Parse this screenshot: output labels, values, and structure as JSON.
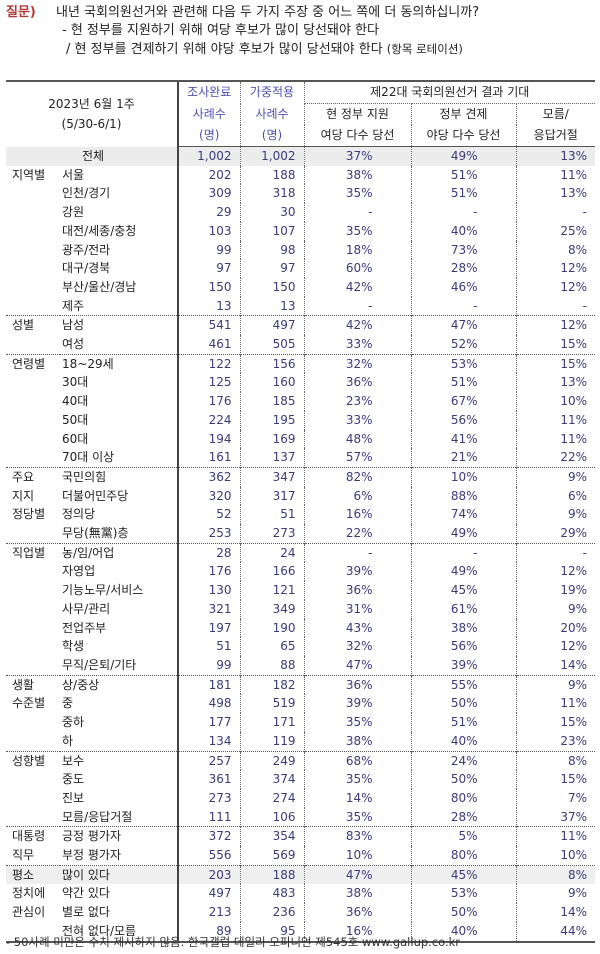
{
  "question": {
    "tag": "질문)",
    "line1": "내년 국회의원선거와 관련해 다음 두 가지 주장 중 어느 쪽에 더 동의하십니까?",
    "line2": "- 현 정부를 지원하기 위해 여당 후보가 많이 당선돼야 한다",
    "line3": "/ 현 정부를 견제하기 위해 야당 후보가 많이 당선돼야 한다",
    "line3_note": "(항목 로테이션)"
  },
  "header": {
    "date1": "2023년 6월 1주",
    "date2": "(5/30-6/1)",
    "col1_top": "조사완료",
    "col1_mid": "사례수",
    "col1_bot": "(명)",
    "col2_top": "가중적용",
    "col2_mid": "사례수",
    "col2_bot": "(명)",
    "group": "제22대 국회의원선거 결과 기대",
    "c3_a": "현 정부 지원",
    "c3_b": "여당 다수 당선",
    "c4_a": "정부 견제",
    "c4_b": "야당 다수 당선",
    "c5_a": "모름/",
    "c5_b": "응답거절"
  },
  "total": {
    "label": "전체",
    "n": "1,002",
    "w": "1,002",
    "a": "37%",
    "b": "49%",
    "c": "13%"
  },
  "groups": [
    {
      "label": [
        "지역별"
      ],
      "rows": [
        {
          "label": "서울",
          "n": "202",
          "w": "188",
          "a": "38%",
          "b": "51%",
          "c": "11%"
        },
        {
          "label": "인천/경기",
          "n": "309",
          "w": "318",
          "a": "35%",
          "b": "51%",
          "c": "13%"
        },
        {
          "label": "강원",
          "n": "29",
          "w": "30",
          "a": "-",
          "b": "-",
          "c": "-"
        },
        {
          "label": "대전/세종/충청",
          "n": "103",
          "w": "107",
          "a": "35%",
          "b": "40%",
          "c": "25%"
        },
        {
          "label": "광주/전라",
          "n": "99",
          "w": "98",
          "a": "18%",
          "b": "73%",
          "c": "8%"
        },
        {
          "label": "대구/경북",
          "n": "97",
          "w": "97",
          "a": "60%",
          "b": "28%",
          "c": "12%"
        },
        {
          "label": "부산/울산/경남",
          "n": "150",
          "w": "150",
          "a": "42%",
          "b": "46%",
          "c": "12%"
        },
        {
          "label": "제주",
          "n": "13",
          "w": "13",
          "a": "-",
          "b": "-",
          "c": "-"
        }
      ]
    },
    {
      "label": [
        "성별"
      ],
      "rows": [
        {
          "label": "남성",
          "n": "541",
          "w": "497",
          "a": "42%",
          "b": "47%",
          "c": "12%"
        },
        {
          "label": "여성",
          "n": "461",
          "w": "505",
          "a": "33%",
          "b": "52%",
          "c": "15%"
        }
      ]
    },
    {
      "label": [
        "연령별"
      ],
      "rows": [
        {
          "label": "18~29세",
          "n": "122",
          "w": "156",
          "a": "32%",
          "b": "53%",
          "c": "15%"
        },
        {
          "label": "30대",
          "n": "125",
          "w": "160",
          "a": "36%",
          "b": "51%",
          "c": "13%"
        },
        {
          "label": "40대",
          "n": "176",
          "w": "185",
          "a": "23%",
          "b": "67%",
          "c": "10%"
        },
        {
          "label": "50대",
          "n": "224",
          "w": "195",
          "a": "33%",
          "b": "56%",
          "c": "11%"
        },
        {
          "label": "60대",
          "n": "194",
          "w": "169",
          "a": "48%",
          "b": "41%",
          "c": "11%"
        },
        {
          "label": "70대 이상",
          "n": "161",
          "w": "137",
          "a": "57%",
          "b": "21%",
          "c": "22%"
        }
      ]
    },
    {
      "label": [
        "주요",
        "지지",
        "정당별"
      ],
      "rows": [
        {
          "label": "국민의힘",
          "n": "362",
          "w": "347",
          "a": "82%",
          "b": "10%",
          "c": "9%"
        },
        {
          "label": "더불어민주당",
          "n": "320",
          "w": "317",
          "a": "6%",
          "b": "88%",
          "c": "6%"
        },
        {
          "label": "정의당",
          "n": "52",
          "w": "51",
          "a": "16%",
          "b": "74%",
          "c": "9%"
        },
        {
          "label": "무당(無黨)층",
          "n": "253",
          "w": "273",
          "a": "22%",
          "b": "49%",
          "c": "29%"
        }
      ]
    },
    {
      "label": [
        "직업별"
      ],
      "rows": [
        {
          "label": "농/임/어업",
          "n": "28",
          "w": "24",
          "a": "-",
          "b": "-",
          "c": "-"
        },
        {
          "label": "자영업",
          "n": "176",
          "w": "166",
          "a": "39%",
          "b": "49%",
          "c": "12%"
        },
        {
          "label": "기능노무/서비스",
          "n": "130",
          "w": "121",
          "a": "36%",
          "b": "45%",
          "c": "19%"
        },
        {
          "label": "사무/관리",
          "n": "321",
          "w": "349",
          "a": "31%",
          "b": "61%",
          "c": "9%"
        },
        {
          "label": "전업주부",
          "n": "197",
          "w": "190",
          "a": "43%",
          "b": "38%",
          "c": "20%"
        },
        {
          "label": "학생",
          "n": "51",
          "w": "65",
          "a": "32%",
          "b": "56%",
          "c": "12%"
        },
        {
          "label": "무직/은퇴/기타",
          "n": "99",
          "w": "88",
          "a": "47%",
          "b": "39%",
          "c": "14%"
        }
      ]
    },
    {
      "label": [
        "생활",
        "수준별"
      ],
      "rows": [
        {
          "label": "상/중상",
          "n": "181",
          "w": "182",
          "a": "36%",
          "b": "55%",
          "c": "9%"
        },
        {
          "label": "중",
          "n": "498",
          "w": "519",
          "a": "39%",
          "b": "50%",
          "c": "11%"
        },
        {
          "label": "중하",
          "n": "177",
          "w": "171",
          "a": "35%",
          "b": "51%",
          "c": "15%"
        },
        {
          "label": "하",
          "n": "134",
          "w": "119",
          "a": "38%",
          "b": "40%",
          "c": "23%"
        }
      ]
    },
    {
      "label": [
        "성향별"
      ],
      "rows": [
        {
          "label": "보수",
          "n": "257",
          "w": "249",
          "a": "68%",
          "b": "24%",
          "c": "8%"
        },
        {
          "label": "중도",
          "n": "361",
          "w": "374",
          "a": "35%",
          "b": "50%",
          "c": "15%"
        },
        {
          "label": "진보",
          "n": "273",
          "w": "274",
          "a": "14%",
          "b": "80%",
          "c": "7%"
        },
        {
          "label": "모름/응답거절",
          "n": "111",
          "w": "106",
          "a": "35%",
          "b": "28%",
          "c": "37%"
        }
      ]
    },
    {
      "label": [
        "대통령",
        "직무"
      ],
      "rows": [
        {
          "label": "긍정 평가자",
          "n": "372",
          "w": "354",
          "a": "83%",
          "b": "5%",
          "c": "11%"
        },
        {
          "label": "부정 평가자",
          "n": "556",
          "w": "569",
          "a": "10%",
          "b": "80%",
          "c": "10%"
        }
      ]
    },
    {
      "label": [
        "평소",
        "정치에",
        "관심이"
      ],
      "rows": [
        {
          "label": "많이 있다",
          "n": "203",
          "w": "188",
          "a": "47%",
          "b": "45%",
          "c": "8%",
          "shade": true
        },
        {
          "label": "약간 있다",
          "n": "497",
          "w": "483",
          "a": "38%",
          "b": "53%",
          "c": "9%"
        },
        {
          "label": "별로 없다",
          "n": "213",
          "w": "236",
          "a": "36%",
          "b": "50%",
          "c": "14%"
        },
        {
          "label": "전혀 없다/모름",
          "n": "89",
          "w": "95",
          "a": "16%",
          "b": "40%",
          "c": "44%"
        }
      ]
    }
  ],
  "footer": "- 50사례 미만은 수치 제시하지 않음. 한국갤럽 데일리 오피니언 제545호 www.gallup.co.kr"
}
